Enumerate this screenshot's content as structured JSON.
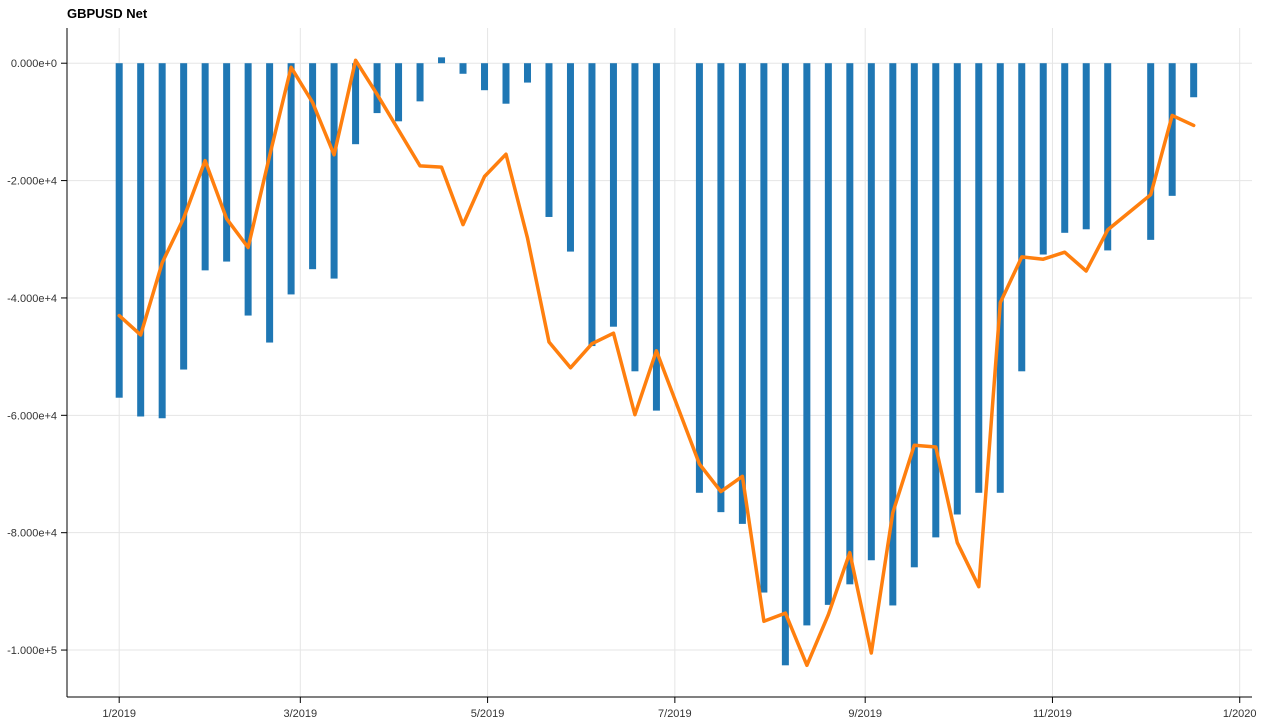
{
  "chart_data": {
    "type": "bar+line",
    "title": "GBPUSD Net",
    "xlabel": "",
    "ylabel": "",
    "xlim": [
      "2018-12-15",
      "2020-01-05"
    ],
    "ylim": [
      -108000,
      6000
    ],
    "grid": true,
    "legend": "none",
    "x_ticks": [
      {
        "date": "2019-01-01",
        "label": "1/2019"
      },
      {
        "date": "2019-03-01",
        "label": "3/2019"
      },
      {
        "date": "2019-05-01",
        "label": "5/2019"
      },
      {
        "date": "2019-07-01",
        "label": "7/2019"
      },
      {
        "date": "2019-09-01",
        "label": "9/2019"
      },
      {
        "date": "2019-11-01",
        "label": "11/2019"
      },
      {
        "date": "2020-01-01",
        "label": "1/2020"
      }
    ],
    "y_ticks": [
      {
        "value": 0,
        "label": "0.000e+0"
      },
      {
        "value": -20000,
        "label": "-2.000e+4"
      },
      {
        "value": -40000,
        "label": "-4.000e+4"
      },
      {
        "value": -60000,
        "label": "-6.000e+4"
      },
      {
        "value": -80000,
        "label": "-8.000e+4"
      },
      {
        "value": -100000,
        "label": "-1.000e+5"
      }
    ],
    "bar_color": "#1f77b4",
    "line_color": "#ff7f0e",
    "series": [
      {
        "type": "bar",
        "x": [
          "2019-01-01",
          "2019-01-08",
          "2019-01-15",
          "2019-01-22",
          "2019-01-29",
          "2019-02-05",
          "2019-02-12",
          "2019-02-19",
          "2019-02-26",
          "2019-03-05",
          "2019-03-12",
          "2019-03-19",
          "2019-03-26",
          "2019-04-02",
          "2019-04-09",
          "2019-04-16",
          "2019-04-23",
          "2019-04-30",
          "2019-05-07",
          "2019-05-14",
          "2019-05-21",
          "2019-05-28",
          "2019-06-04",
          "2019-06-11",
          "2019-06-18",
          "2019-06-25",
          "2019-07-09",
          "2019-07-16",
          "2019-07-23",
          "2019-07-30",
          "2019-08-06",
          "2019-08-13",
          "2019-08-20",
          "2019-08-27",
          "2019-09-03",
          "2019-09-10",
          "2019-09-17",
          "2019-09-24",
          "2019-10-01",
          "2019-10-08",
          "2019-10-15",
          "2019-10-22",
          "2019-10-29",
          "2019-11-05",
          "2019-11-12",
          "2019-11-19",
          "2019-12-03",
          "2019-12-10",
          "2019-12-17"
        ],
        "values": [
          -57000,
          -60200,
          -60500,
          -52200,
          -35300,
          -33800,
          -43000,
          -47600,
          -39400,
          -35100,
          -36700,
          -13800,
          -8500,
          -9900,
          -6500,
          1000,
          -1800,
          -4600,
          -6900,
          -3300,
          -26200,
          -32100,
          -48200,
          -44900,
          -52500,
          -59200,
          -73200,
          -76500,
          -78500,
          -90200,
          -102600,
          -95800,
          -92300,
          -88800,
          -84700,
          -92400,
          -85900,
          -80800,
          -76900,
          -73200,
          -73200,
          -52500,
          -32600,
          -28900,
          -28300,
          -31900,
          -30100,
          -22600,
          -5800
        ]
      },
      {
        "type": "line",
        "x": [
          "2019-01-01",
          "2019-01-08",
          "2019-01-15",
          "2019-01-22",
          "2019-01-29",
          "2019-02-05",
          "2019-02-12",
          "2019-02-19",
          "2019-02-26",
          "2019-03-05",
          "2019-03-12",
          "2019-03-19",
          "2019-03-26",
          "2019-04-09",
          "2019-04-16",
          "2019-04-23",
          "2019-04-30",
          "2019-05-07",
          "2019-05-14",
          "2019-05-21",
          "2019-05-28",
          "2019-06-04",
          "2019-06-11",
          "2019-06-18",
          "2019-06-25",
          "2019-07-09",
          "2019-07-16",
          "2019-07-23",
          "2019-07-30",
          "2019-08-06",
          "2019-08-13",
          "2019-08-20",
          "2019-08-27",
          "2019-09-03",
          "2019-09-10",
          "2019-09-17",
          "2019-09-24",
          "2019-10-01",
          "2019-10-08",
          "2019-10-15",
          "2019-10-22",
          "2019-10-29",
          "2019-11-05",
          "2019-11-12",
          "2019-11-19",
          "2019-12-03",
          "2019-12-10",
          "2019-12-17"
        ],
        "values": [
          -43000,
          -46300,
          -34000,
          -26400,
          -16600,
          -26500,
          -31400,
          -15800,
          -700,
          -6700,
          -15600,
          500,
          -5300,
          -17500,
          -17700,
          -27500,
          -19300,
          -15500,
          -29800,
          -47500,
          -51900,
          -47800,
          -46000,
          -59900,
          -49000,
          -68300,
          -73000,
          -70400,
          -95100,
          -93700,
          -102600,
          -94000,
          -83400,
          -100500,
          -76600,
          -65100,
          -65400,
          -81700,
          -89200,
          -40800,
          -33000,
          -33400,
          -32200,
          -35400,
          -28400,
          -22400,
          -8900,
          -10600
        ]
      }
    ]
  }
}
